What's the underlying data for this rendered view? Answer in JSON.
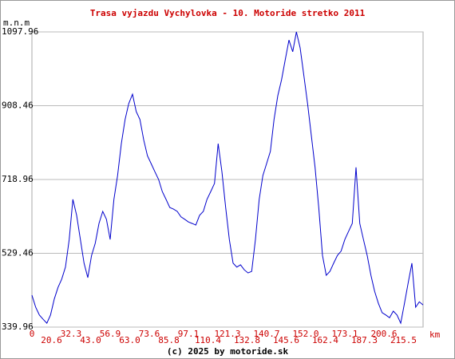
{
  "chart_data": {
    "type": "line",
    "title": "Trasa vyjazdu Vychylovka - 10. Motoride stretko 2011",
    "y_label": "m.n.m",
    "x_label": "km",
    "footer": "(c) 2025 by motoride.sk",
    "ylim": [
      339.96,
      1097.96
    ],
    "yticks": [
      339.96,
      529.46,
      718.96,
      908.46,
      1097.96
    ],
    "grid": true,
    "x_tick_labels": [
      "0",
      "20.6",
      "32.3",
      "43.0",
      "56.9",
      "63.0",
      "73.6",
      "85.8",
      "97.1",
      "110.4",
      "121.3",
      "132.8",
      "140.7",
      "145.6",
      "152.0",
      "162.4",
      "173.1",
      "187.3",
      "200.6",
      "215.5"
    ],
    "color": "#0000cc",
    "values": [
      422,
      391,
      371,
      360,
      350,
      371,
      412,
      442,
      463,
      494,
      565,
      668,
      627,
      565,
      504,
      467,
      524,
      555,
      606,
      637,
      617,
      565,
      668,
      729,
      811,
      873,
      914,
      938,
      893,
      873,
      821,
      780,
      760,
      739,
      719,
      688,
      668,
      647,
      643,
      637,
      623,
      617,
      610,
      606,
      602,
      627,
      637,
      668,
      688,
      709,
      811,
      739,
      647,
      565,
      504,
      494,
      500,
      487,
      479,
      483,
      565,
      668,
      729,
      760,
      791,
      873,
      934,
      975,
      1026,
      1077,
      1047,
      1098,
      1057,
      985,
      914,
      832,
      750,
      647,
      524,
      473,
      483,
      504,
      524,
      535,
      565,
      586,
      606,
      750,
      606,
      565,
      524,
      473,
      432,
      401,
      377,
      371,
      364,
      381,
      371,
      350,
      401,
      453,
      504,
      391,
      405,
      397
    ]
  }
}
